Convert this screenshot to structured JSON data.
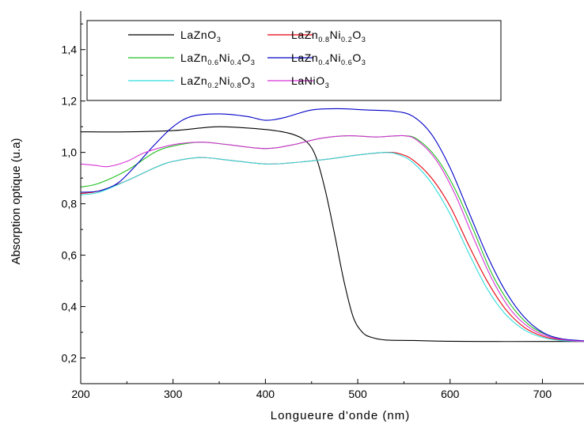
{
  "chart_data": {
    "type": "line",
    "xlabel": "Longueure d'onde  (nm)",
    "ylabel": "Absorption optique (u.a)",
    "xlim": [
      200,
      745
    ],
    "ylim": [
      0.1,
      1.55
    ],
    "x_ticks": [
      200,
      300,
      400,
      500,
      600,
      700
    ],
    "x_tick_labels": [
      "200",
      "300",
      "400",
      "500",
      "600",
      "700"
    ],
    "y_ticks": [
      0.2,
      0.4,
      0.6,
      0.8,
      1.0,
      1.2,
      1.4
    ],
    "y_tick_labels": [
      "0,2",
      "0,4",
      "0,6",
      "0,8",
      "1,0",
      "1,2",
      "1,4"
    ],
    "grid": false,
    "legend_position": "top",
    "series": [
      {
        "name_parts": [
          [
            "LaZnO",
            ""
          ],
          [
            "3",
            "sub"
          ]
        ],
        "color": "#000000",
        "x": [
          200,
          250,
          300,
          330,
          350,
          380,
          410,
          430,
          445,
          455,
          465,
          475,
          485,
          495,
          505,
          515,
          530,
          560,
          600,
          650,
          700,
          745
        ],
        "y": [
          1.08,
          1.08,
          1.085,
          1.095,
          1.1,
          1.095,
          1.085,
          1.07,
          1.04,
          0.98,
          0.85,
          0.68,
          0.5,
          0.36,
          0.3,
          0.28,
          0.27,
          0.268,
          0.265,
          0.264,
          0.264,
          0.264
        ]
      },
      {
        "name_parts": [
          [
            "LaZn",
            ""
          ],
          [
            "0.8",
            "sub"
          ],
          [
            "Ni",
            ""
          ],
          [
            "0.2",
            "sub"
          ],
          [
            "O",
            ""
          ],
          [
            "3",
            "sub"
          ]
        ],
        "color": "#e8000b",
        "x": [
          200,
          220,
          250,
          280,
          300,
          330,
          360,
          400,
          430,
          470,
          500,
          530,
          545,
          560,
          580,
          600,
          620,
          640,
          660,
          680,
          700,
          720,
          745
        ],
        "y": [
          0.84,
          0.85,
          0.89,
          0.94,
          0.965,
          0.98,
          0.97,
          0.955,
          0.96,
          0.975,
          0.99,
          1.0,
          0.995,
          0.97,
          0.9,
          0.79,
          0.64,
          0.5,
          0.39,
          0.32,
          0.285,
          0.27,
          0.265
        ]
      },
      {
        "name_parts": [
          [
            "LaZn",
            ""
          ],
          [
            "0.6",
            "sub"
          ],
          [
            "Ni",
            ""
          ],
          [
            "0.4",
            "sub"
          ],
          [
            "O",
            ""
          ],
          [
            "3",
            "sub"
          ]
        ],
        "color": "#22c022",
        "x": [
          200,
          220,
          250,
          280,
          300,
          330,
          360,
          400,
          430,
          460,
          490,
          520,
          550,
          565,
          585,
          605,
          625,
          645,
          665,
          685,
          705,
          725,
          745
        ],
        "y": [
          0.865,
          0.88,
          0.93,
          1.0,
          1.025,
          1.04,
          1.03,
          1.015,
          1.03,
          1.055,
          1.065,
          1.06,
          1.065,
          1.05,
          0.98,
          0.86,
          0.7,
          0.53,
          0.41,
          0.33,
          0.29,
          0.272,
          0.266
        ]
      },
      {
        "name_parts": [
          [
            "LaZn",
            ""
          ],
          [
            "0.4",
            "sub"
          ],
          [
            "Ni",
            ""
          ],
          [
            "0.6",
            "sub"
          ],
          [
            "O",
            ""
          ],
          [
            "3",
            "sub"
          ]
        ],
        "color": "#0000c8",
        "x": [
          200,
          220,
          240,
          260,
          280,
          300,
          320,
          350,
          380,
          400,
          420,
          450,
          480,
          510,
          540,
          560,
          580,
          600,
          620,
          640,
          660,
          680,
          700,
          720,
          745
        ],
        "y": [
          0.845,
          0.85,
          0.88,
          0.95,
          1.03,
          1.1,
          1.14,
          1.15,
          1.14,
          1.125,
          1.135,
          1.165,
          1.17,
          1.165,
          1.16,
          1.14,
          1.07,
          0.94,
          0.77,
          0.6,
          0.46,
          0.36,
          0.3,
          0.275,
          0.267
        ]
      },
      {
        "name_parts": [
          [
            "LaZn",
            ""
          ],
          [
            "0.2",
            "sub"
          ],
          [
            "Ni",
            ""
          ],
          [
            "0.8",
            "sub"
          ],
          [
            "O",
            ""
          ],
          [
            "3",
            "sub"
          ]
        ],
        "color": "#33dddd",
        "x": [
          200,
          220,
          250,
          280,
          300,
          330,
          360,
          400,
          430,
          470,
          500,
          530,
          545,
          560,
          580,
          600,
          620,
          640,
          660,
          680,
          700,
          720,
          745
        ],
        "y": [
          0.835,
          0.845,
          0.89,
          0.94,
          0.965,
          0.98,
          0.97,
          0.955,
          0.96,
          0.975,
          0.99,
          1.0,
          0.99,
          0.96,
          0.88,
          0.76,
          0.61,
          0.47,
          0.37,
          0.31,
          0.28,
          0.268,
          0.265
        ]
      },
      {
        "name_parts": [
          [
            "LaNiO",
            ""
          ],
          [
            "3",
            "sub"
          ]
        ],
        "color": "#d633d6",
        "x": [
          200,
          215,
          230,
          250,
          270,
          300,
          330,
          360,
          400,
          430,
          460,
          490,
          520,
          550,
          565,
          585,
          605,
          625,
          645,
          665,
          685,
          705,
          725,
          745
        ],
        "y": [
          0.955,
          0.95,
          0.945,
          0.965,
          1.0,
          1.03,
          1.04,
          1.03,
          1.015,
          1.03,
          1.055,
          1.065,
          1.06,
          1.065,
          1.045,
          0.97,
          0.84,
          0.67,
          0.51,
          0.39,
          0.32,
          0.285,
          0.27,
          0.265
        ]
      }
    ]
  }
}
